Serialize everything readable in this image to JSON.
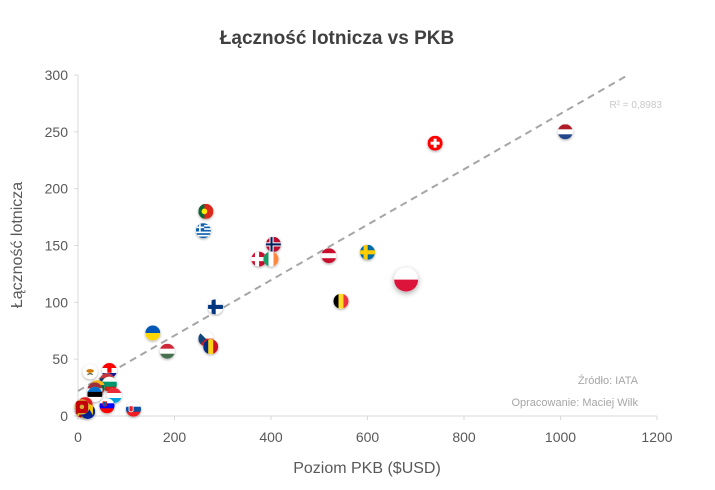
{
  "chart_data": {
    "type": "scatter",
    "title": "Łączność lotnicza vs PKB",
    "xlabel": "Poziom PKB ($USD)",
    "ylabel": "Łączność lotnicza",
    "xlim": [
      0,
      1200
    ],
    "ylim": [
      0,
      300
    ],
    "xticks": [
      "0",
      "200",
      "400",
      "600",
      "800",
      "1000",
      "1200"
    ],
    "yticks": [
      "0",
      "50",
      "100",
      "150",
      "200",
      "250",
      "300"
    ],
    "trendline": {
      "label": "R² = 0,8983",
      "start": [
        0,
        22
      ],
      "end": [
        1140,
        300
      ]
    },
    "points": [
      {
        "country": "Netherlands",
        "flag": "netherlands",
        "x": 1010,
        "y": 250
      },
      {
        "country": "Switzerland",
        "flag": "switzerland",
        "x": 740,
        "y": 240
      },
      {
        "country": "Portugal",
        "flag": "portugal",
        "x": 265,
        "y": 180
      },
      {
        "country": "Greece",
        "flag": "greece",
        "x": 260,
        "y": 163
      },
      {
        "country": "Norway",
        "flag": "norway",
        "x": 405,
        "y": 151
      },
      {
        "country": "Sweden",
        "flag": "sweden",
        "x": 600,
        "y": 144
      },
      {
        "country": "Austria",
        "flag": "austria",
        "x": 520,
        "y": 141
      },
      {
        "country": "Denmark",
        "flag": "denmark",
        "x": 375,
        "y": 138
      },
      {
        "country": "Ireland",
        "flag": "ireland",
        "x": 400,
        "y": 138
      },
      {
        "country": "Poland",
        "flag": "poland",
        "x": 680,
        "y": 120
      },
      {
        "country": "Belgium",
        "flag": "belgium",
        "x": 545,
        "y": 101
      },
      {
        "country": "Finland",
        "flag": "finland",
        "x": 285,
        "y": 96
      },
      {
        "country": "Ukraine",
        "flag": "ukraine",
        "x": 155,
        "y": 73
      },
      {
        "country": "Czech Republic",
        "flag": "czechia",
        "x": 265,
        "y": 68
      },
      {
        "country": "Romania",
        "flag": "romania",
        "x": 275,
        "y": 61
      },
      {
        "country": "Hungary",
        "flag": "hungary",
        "x": 185,
        "y": 57
      },
      {
        "country": "Croatia",
        "flag": "croatia",
        "x": 65,
        "y": 40
      },
      {
        "country": "Cyprus",
        "flag": "cyprus",
        "x": 25,
        "y": 39
      },
      {
        "country": "Serbia",
        "flag": "serbia",
        "x": 60,
        "y": 31
      },
      {
        "country": "Bulgaria",
        "flag": "bulgaria",
        "x": 65,
        "y": 28
      },
      {
        "country": "Lithuania",
        "flag": "lithuania",
        "x": 40,
        "y": 25
      },
      {
        "country": "Latvia",
        "flag": "latvia",
        "x": 35,
        "y": 23
      },
      {
        "country": "Estonia",
        "flag": "estonia",
        "x": 35,
        "y": 19
      },
      {
        "country": "Luxembourg",
        "flag": "luxembourg",
        "x": 75,
        "y": 18
      },
      {
        "country": "Slovenia",
        "flag": "slovenia",
        "x": 60,
        "y": 9
      },
      {
        "country": "Slovakia",
        "flag": "slovakia",
        "x": 115,
        "y": 6
      },
      {
        "country": "Albania",
        "flag": "albania",
        "x": 15,
        "y": 10
      },
      {
        "country": "North Macedonia",
        "flag": "north-macedonia",
        "x": 10,
        "y": 5
      },
      {
        "country": "Bosnia and Herzegovina",
        "flag": "bosnia",
        "x": 20,
        "y": 4
      },
      {
        "country": "Montenegro",
        "flag": "montenegro",
        "x": 8,
        "y": 8
      }
    ],
    "source_lines": [
      "Źródło: IATA",
      "Opracowanie: Maciej Wilk"
    ],
    "colors": {
      "trendline": "#a6a6a6",
      "axis": "#d9d9d9",
      "grid": "#ececec"
    }
  }
}
